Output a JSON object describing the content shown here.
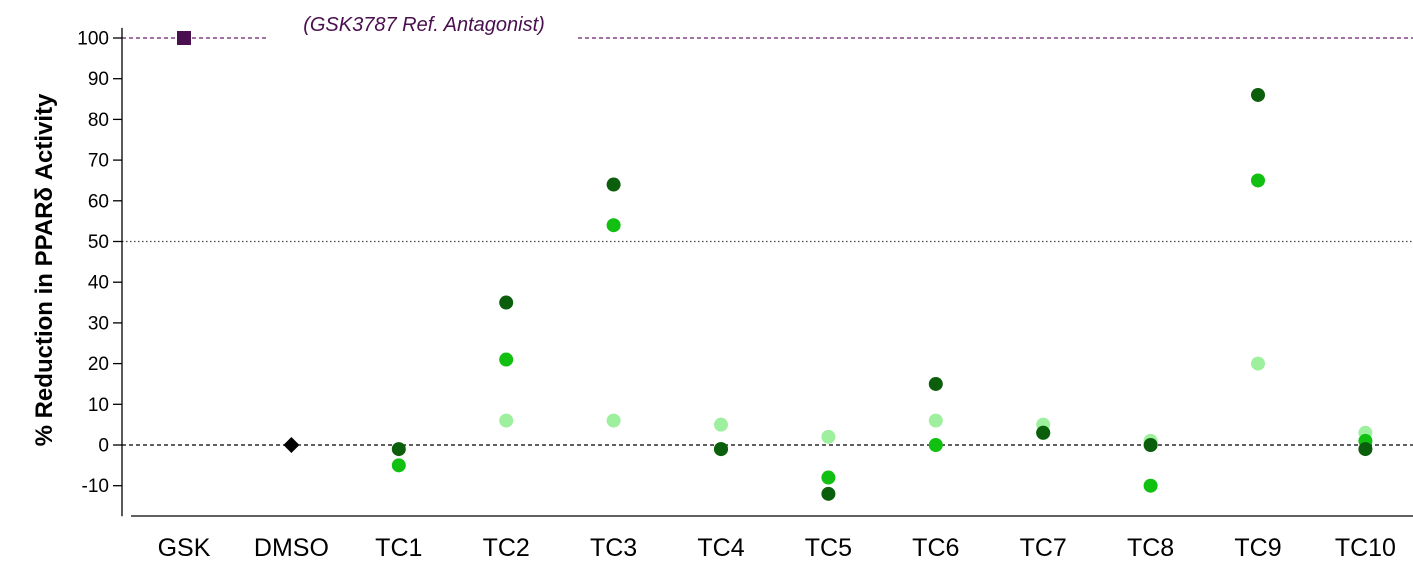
{
  "chart_data": {
    "type": "scatter",
    "ylabel": "% Reduction in PPARδ Activity",
    "xlabel": "",
    "ylim": [
      -17,
      102
    ],
    "yticks": [
      -10,
      0,
      10,
      20,
      30,
      40,
      50,
      60,
      70,
      80,
      90,
      100
    ],
    "categories": [
      "GSK",
      "DMSO",
      "TC1",
      "TC2",
      "TC3",
      "TC4",
      "TC5",
      "TC6",
      "TC7",
      "TC8",
      "TC9",
      "TC10"
    ],
    "reference_lines": [
      {
        "y": 100,
        "style": "dashed",
        "color": "#6b1f6e",
        "label": "(GSK3787 Ref. Antagonist)"
      },
      {
        "y": 50,
        "style": "dotted",
        "color": "#444444",
        "label": ""
      },
      {
        "y": 0,
        "style": "dashed",
        "color": "#000000",
        "label": ""
      }
    ],
    "controls": [
      {
        "category": "GSK",
        "value": 100,
        "marker": "square",
        "color": "#4a0f4f"
      },
      {
        "category": "DMSO",
        "value": 0,
        "marker": "diamond",
        "color": "#000000"
      }
    ],
    "series": [
      {
        "color": "#9ef09e",
        "values": [
          null,
          null,
          null,
          6,
          6,
          5,
          2,
          6,
          5,
          1,
          20,
          3
        ]
      },
      {
        "color": "#11c011",
        "values": [
          null,
          null,
          -5,
          21,
          54,
          -1,
          -8,
          0,
          3,
          -10,
          65,
          1
        ]
      },
      {
        "color": "#0b5e0b",
        "values": [
          null,
          null,
          -1,
          35,
          64,
          -1,
          -12,
          15,
          3,
          0,
          86,
          -1
        ]
      }
    ]
  }
}
